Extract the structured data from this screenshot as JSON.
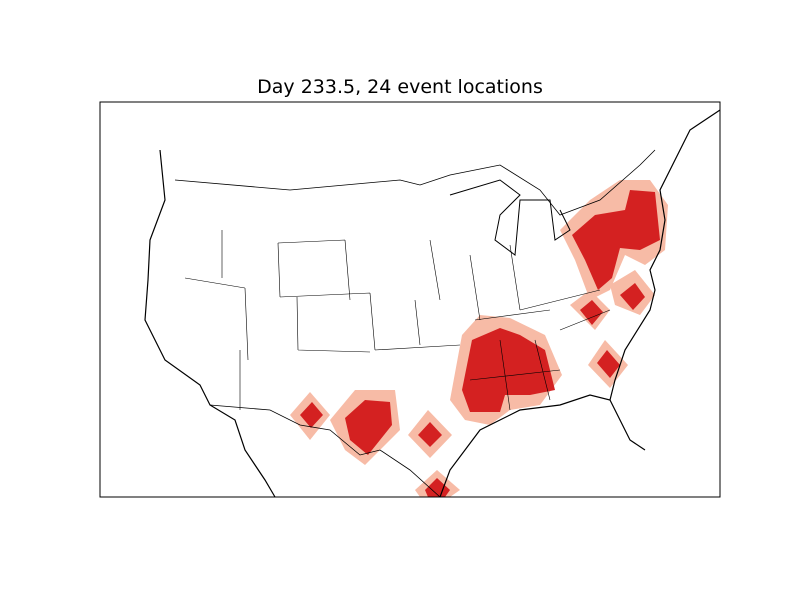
{
  "title": "Day 233.5, 24 event locations",
  "colors": {
    "core": "#d42121",
    "halo": "#f7bba6",
    "border": "#000000",
    "background": "#ffffff"
  },
  "map": {
    "region": "North America (contiguous US)",
    "features": [
      "coastlines",
      "country borders",
      "state borders"
    ],
    "event_count": 24
  }
}
